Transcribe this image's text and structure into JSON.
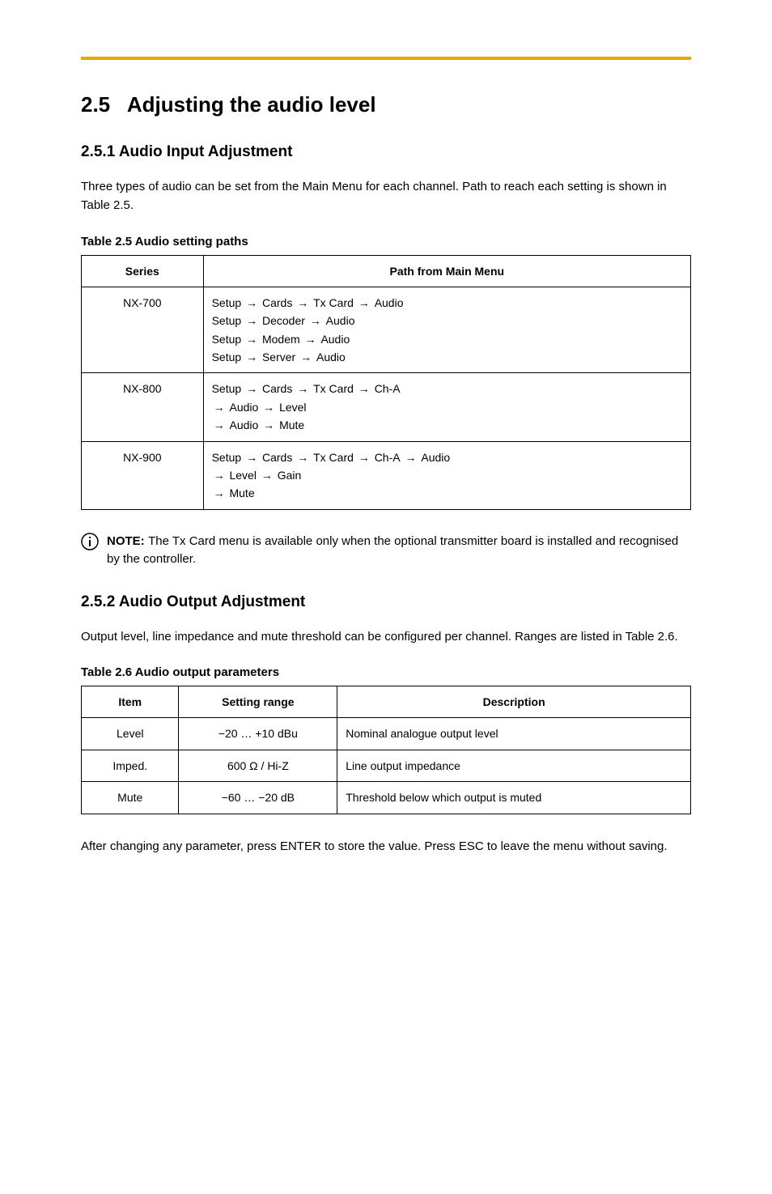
{
  "colors": {
    "rule": "#e5a800",
    "text": "#000000",
    "bg": "#ffffff",
    "border": "#000000"
  },
  "section": {
    "number": "2.5",
    "title": "Adjusting the audio level"
  },
  "sub1": {
    "heading": "2.5.1 Audio Input Adjustment",
    "p1": "Three types of audio can be set from the Main Menu for each channel. Path to reach each setting is shown in Table 2.5.",
    "tableCaption": "Table 2.5 Audio setting paths",
    "table": {
      "headers": {
        "series": "Series",
        "path": "Path from Main Menu"
      },
      "rows": [
        {
          "series": "NX-700",
          "lines": [
            [
              {
                "t": "Setup"
              },
              {
                "a": true
              },
              {
                "t": "Cards"
              },
              {
                "a": true
              },
              {
                "t": "Tx Card"
              },
              {
                "a": true
              },
              {
                "t": "Audio"
              }
            ],
            [
              {
                "t": "Setup"
              },
              {
                "a": true
              },
              {
                "t": "Decoder"
              },
              {
                "a": true
              },
              {
                "t": "Audio"
              }
            ],
            [
              {
                "t": "Setup"
              },
              {
                "a": true
              },
              {
                "t": "Modem"
              },
              {
                "a": true
              },
              {
                "t": "Audio"
              }
            ],
            [
              {
                "t": "Setup"
              },
              {
                "a": true
              },
              {
                "t": "Server"
              },
              {
                "a": true
              },
              {
                "t": "Audio"
              }
            ]
          ]
        },
        {
          "series": "NX-800",
          "lines": [
            [
              {
                "t": "Setup"
              },
              {
                "a": true
              },
              {
                "t": "Cards"
              },
              {
                "a": true
              },
              {
                "t": "Tx Card"
              },
              {
                "a": true
              },
              {
                "t": "Ch-A"
              }
            ],
            [
              {
                "a": true
              },
              {
                "t": "Audio"
              },
              {
                "a": true
              },
              {
                "t": "Level"
              }
            ],
            [
              {
                "a": true
              },
              {
                "t": "Audio"
              },
              {
                "a": true
              },
              {
                "t": "Mute"
              }
            ]
          ]
        },
        {
          "series": "NX-900",
          "lines": [
            [
              {
                "t": "Setup"
              },
              {
                "a": true
              },
              {
                "t": "Cards"
              },
              {
                "a": true
              },
              {
                "t": "Tx Card"
              },
              {
                "a": true
              },
              {
                "t": "Ch-A"
              },
              {
                "a": true
              },
              {
                "t": "Audio"
              }
            ],
            [
              {
                "a": true
              },
              {
                "t": "Level"
              },
              {
                "a": true
              },
              {
                "t": "Gain"
              }
            ],
            [
              {
                "a": true
              },
              {
                "t": "Mute"
              }
            ]
          ]
        }
      ]
    }
  },
  "note": {
    "label": "NOTE:",
    "text": "The Tx Card menu is available only when the optional transmitter board is installed and recognised by the controller."
  },
  "sub2": {
    "heading": "2.5.2 Audio Output Adjustment",
    "p1": "Output level, line impedance and mute threshold can be configured per channel. Ranges are listed in Table 2.6.",
    "tableCaption": "Table 2.6 Audio output parameters",
    "table": {
      "headers": {
        "item": "Item",
        "range": "Setting range",
        "desc": "Description"
      },
      "rows": [
        {
          "item": "Level",
          "range": "−20 … +10 dBu",
          "desc": "Nominal analogue output level"
        },
        {
          "item": "Imped.",
          "range": "600 Ω / Hi-Z",
          "desc": "Line output impedance"
        },
        {
          "item": "Mute",
          "range": "−60 … −20 dB",
          "desc": "Threshold below which output is muted"
        }
      ]
    }
  },
  "p_after": "After changing any parameter, press ENTER to store the value. Press ESC to leave the menu without saving.",
  "arrowGlyph": "→"
}
